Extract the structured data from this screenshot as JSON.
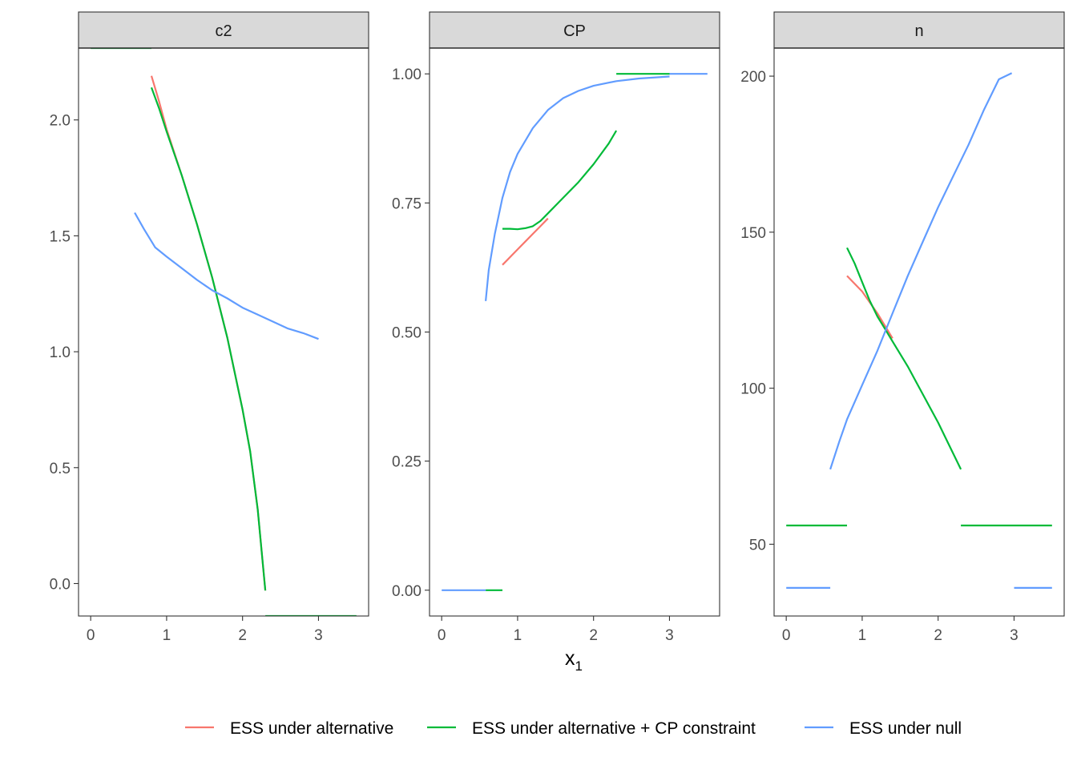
{
  "chart_data": {
    "type": "line",
    "xlabel_main": "x",
    "xlabel_sub": "1",
    "colors": {
      "ESS under alternative": "#F8766D",
      "ESS under alternative + CP constraint": "#00BA38",
      "ESS under null": "#619CFF"
    },
    "legend": {
      "position": "bottom",
      "entries": [
        "ESS under alternative",
        "ESS under alternative + CP constraint",
        "ESS under null"
      ]
    },
    "panels": [
      {
        "name": "c2",
        "xlim": [
          -0.16,
          3.66
        ],
        "ylim": [
          -0.14,
          2.31
        ],
        "xticks": [
          0,
          1,
          2,
          3
        ],
        "yticks": [
          0.0,
          0.5,
          1.0,
          1.5,
          2.0
        ],
        "ytick_labels": [
          "0.0",
          "0.5",
          "1.0",
          "1.5",
          "2.0"
        ],
        "series": [
          {
            "name": "ESS under alternative",
            "segments": [
              [
                [
                  0.8,
                  2.19
                ],
                [
                  0.9,
                  2.08
                ],
                [
                  1.0,
                  1.96
                ],
                [
                  1.2,
                  1.76
                ],
                [
                  1.4,
                  1.55
                ],
                [
                  1.6,
                  1.32
                ],
                [
                  1.8,
                  1.06
                ],
                [
                  2.0,
                  0.75
                ],
                [
                  2.1,
                  0.57
                ],
                [
                  2.2,
                  0.32
                ],
                [
                  2.3,
                  -0.03
                ]
              ]
            ]
          },
          {
            "name": "ESS under alternative + CP constraint",
            "segments": [
              [
                [
                  0.0,
                  2.31
                ],
                [
                  0.8,
                  2.31
                ]
              ],
              [
                [
                  0.8,
                  2.14
                ],
                [
                  0.9,
                  2.05
                ],
                [
                  1.0,
                  1.95
                ],
                [
                  1.2,
                  1.76
                ],
                [
                  1.4,
                  1.55
                ],
                [
                  1.6,
                  1.32
                ],
                [
                  1.8,
                  1.06
                ],
                [
                  2.0,
                  0.75
                ],
                [
                  2.1,
                  0.57
                ],
                [
                  2.2,
                  0.32
                ],
                [
                  2.3,
                  -0.03
                ]
              ],
              [
                [
                  2.3,
                  -0.14
                ],
                [
                  3.5,
                  -0.14
                ]
              ]
            ]
          },
          {
            "name": "ESS under null",
            "segments": [
              [
                [
                  0.58,
                  1.6
                ],
                [
                  0.7,
                  1.53
                ],
                [
                  0.85,
                  1.45
                ],
                [
                  1.0,
                  1.41
                ],
                [
                  1.2,
                  1.36
                ],
                [
                  1.4,
                  1.31
                ],
                [
                  1.6,
                  1.265
                ],
                [
                  1.8,
                  1.23
                ],
                [
                  2.0,
                  1.19
                ],
                [
                  2.2,
                  1.16
                ],
                [
                  2.4,
                  1.13
                ],
                [
                  2.6,
                  1.1
                ],
                [
                  2.8,
                  1.08
                ],
                [
                  3.0,
                  1.055
                ]
              ]
            ]
          }
        ]
      },
      {
        "name": "CP",
        "xlim": [
          -0.16,
          3.66
        ],
        "ylim": [
          -0.05,
          1.05
        ],
        "xticks": [
          0,
          1,
          2,
          3
        ],
        "yticks": [
          0.0,
          0.25,
          0.5,
          0.75,
          1.0
        ],
        "ytick_labels": [
          "0.00",
          "0.25",
          "0.50",
          "0.75",
          "1.00"
        ],
        "series": [
          {
            "name": "ESS under alternative",
            "segments": [
              [
                [
                  0.8,
                  0.63
                ],
                [
                  0.9,
                  0.645
                ],
                [
                  1.0,
                  0.66
                ],
                [
                  1.1,
                  0.675
                ],
                [
                  1.2,
                  0.69
                ],
                [
                  1.3,
                  0.705
                ],
                [
                  1.4,
                  0.72
                ]
              ]
            ]
          },
          {
            "name": "ESS under alternative + CP constraint",
            "segments": [
              [
                [
                  0.58,
                  0.0
                ],
                [
                  0.8,
                  0.0
                ]
              ],
              [
                [
                  0.8,
                  0.7
                ],
                [
                  0.9,
                  0.7
                ],
                [
                  1.0,
                  0.699
                ],
                [
                  1.1,
                  0.701
                ],
                [
                  1.2,
                  0.705
                ],
                [
                  1.3,
                  0.715
                ],
                [
                  1.4,
                  0.73
                ],
                [
                  1.6,
                  0.76
                ],
                [
                  1.8,
                  0.79
                ],
                [
                  2.0,
                  0.825
                ],
                [
                  2.2,
                  0.865
                ],
                [
                  2.3,
                  0.89
                ]
              ],
              [
                [
                  2.3,
                  1.0
                ],
                [
                  3.0,
                  1.0
                ]
              ]
            ]
          },
          {
            "name": "ESS under null",
            "segments": [
              [
                [
                  0.0,
                  0.0
                ],
                [
                  0.58,
                  0.0
                ]
              ],
              [
                [
                  0.58,
                  0.56
                ],
                [
                  0.62,
                  0.62
                ],
                [
                  0.7,
                  0.69
                ],
                [
                  0.8,
                  0.76
                ],
                [
                  0.9,
                  0.81
                ],
                [
                  1.0,
                  0.845
                ],
                [
                  1.2,
                  0.895
                ],
                [
                  1.4,
                  0.93
                ],
                [
                  1.6,
                  0.953
                ],
                [
                  1.8,
                  0.967
                ],
                [
                  2.0,
                  0.977
                ],
                [
                  2.3,
                  0.986
                ],
                [
                  2.6,
                  0.991
                ],
                [
                  3.0,
                  0.995
                ]
              ],
              [
                [
                  3.0,
                  1.0
                ],
                [
                  3.5,
                  1.0
                ]
              ]
            ]
          }
        ]
      },
      {
        "name": "n",
        "xlim": [
          -0.16,
          3.66
        ],
        "ylim": [
          27,
          209
        ],
        "xticks": [
          0,
          1,
          2,
          3
        ],
        "yticks": [
          50,
          100,
          150,
          200
        ],
        "ytick_labels": [
          "50",
          "100",
          "150",
          "200"
        ],
        "series": [
          {
            "name": "ESS under alternative",
            "segments": [
              [
                [
                  0.8,
                  136
                ],
                [
                  1.0,
                  131
                ],
                [
                  1.2,
                  124
                ],
                [
                  1.4,
                  116
                ]
              ]
            ]
          },
          {
            "name": "ESS under alternative + CP constraint",
            "segments": [
              [
                [
                  0.0,
                  56
                ],
                [
                  0.8,
                  56
                ]
              ],
              [
                [
                  0.8,
                  145
                ],
                [
                  0.9,
                  140
                ],
                [
                  1.0,
                  134
                ],
                [
                  1.1,
                  128
                ],
                [
                  1.2,
                  123
                ],
                [
                  1.3,
                  119
                ],
                [
                  1.4,
                  115
                ],
                [
                  1.6,
                  107
                ],
                [
                  1.8,
                  98
                ],
                [
                  2.0,
                  89
                ],
                [
                  2.2,
                  79
                ],
                [
                  2.3,
                  74
                ]
              ],
              [
                [
                  2.3,
                  56
                ],
                [
                  3.5,
                  56
                ]
              ]
            ]
          },
          {
            "name": "ESS under null",
            "segments": [
              [
                [
                  0.0,
                  36
                ],
                [
                  0.58,
                  36
                ]
              ],
              [
                [
                  0.58,
                  74
                ],
                [
                  0.7,
                  83
                ],
                [
                  0.8,
                  90
                ],
                [
                  1.0,
                  101
                ],
                [
                  1.2,
                  112
                ],
                [
                  1.4,
                  124
                ],
                [
                  1.6,
                  136
                ],
                [
                  1.8,
                  147
                ],
                [
                  2.0,
                  158
                ],
                [
                  2.2,
                  168
                ],
                [
                  2.4,
                  178
                ],
                [
                  2.6,
                  189
                ],
                [
                  2.8,
                  199
                ],
                [
                  2.97,
                  201
                ]
              ],
              [
                [
                  3.0,
                  36
                ],
                [
                  3.5,
                  36
                ]
              ]
            ]
          }
        ]
      }
    ]
  }
}
